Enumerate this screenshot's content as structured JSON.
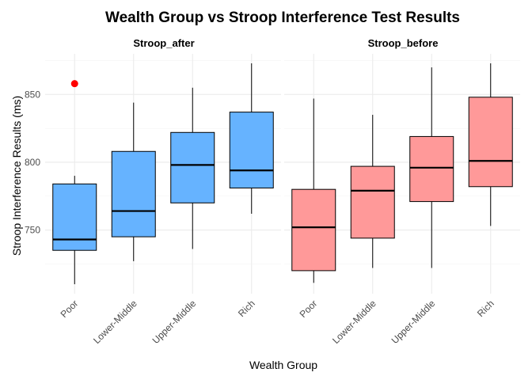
{
  "chart_data": {
    "type": "boxplot",
    "title": "Wealth Group vs Stroop Interference Test Results",
    "xlabel": "Wealth Group",
    "ylabel": "Stroop Interference Results (ms)",
    "categories": [
      "Poor",
      "Lower-Middle",
      "Upper-Middle",
      "Rich"
    ],
    "y_ticks": [
      750,
      800,
      850
    ],
    "ylim": [
      703,
      880
    ],
    "grid": true,
    "colors": {
      "Stroop_after": "#66b3ff",
      "Stroop_before": "#ff9999",
      "outlier": "#ff0000"
    },
    "panels": [
      {
        "name": "Stroop_after",
        "boxes": [
          {
            "category": "Poor",
            "min": 710,
            "q1": 735,
            "median": 743,
            "q3": 784,
            "max": 790,
            "outliers": [
              858
            ]
          },
          {
            "category": "Lower-Middle",
            "min": 727,
            "q1": 745,
            "median": 764,
            "q3": 808,
            "max": 844,
            "outliers": []
          },
          {
            "category": "Upper-Middle",
            "min": 736,
            "q1": 770,
            "median": 798,
            "q3": 822,
            "max": 855,
            "outliers": []
          },
          {
            "category": "Rich",
            "min": 762,
            "q1": 781,
            "median": 794,
            "q3": 837,
            "max": 873,
            "outliers": []
          }
        ]
      },
      {
        "name": "Stroop_before",
        "boxes": [
          {
            "category": "Poor",
            "min": 711,
            "q1": 720,
            "median": 752,
            "q3": 780,
            "max": 847,
            "outliers": []
          },
          {
            "category": "Lower-Middle",
            "min": 722,
            "q1": 744,
            "median": 779,
            "q3": 797,
            "max": 835,
            "outliers": []
          },
          {
            "category": "Upper-Middle",
            "min": 722,
            "q1": 771,
            "median": 796,
            "q3": 819,
            "max": 870,
            "outliers": []
          },
          {
            "category": "Rich",
            "min": 753,
            "q1": 782,
            "median": 801,
            "q3": 848,
            "max": 873,
            "outliers": []
          }
        ]
      }
    ]
  }
}
